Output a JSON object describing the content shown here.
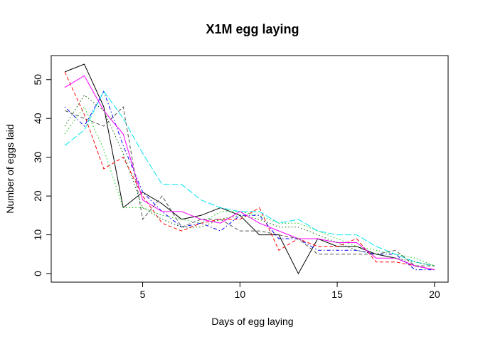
{
  "chart_data": {
    "type": "line",
    "title": "X1M egg laying",
    "xlabel": "Days of egg laying",
    "ylabel": "Number of eggs laid",
    "xlim": [
      0.3,
      20.7
    ],
    "ylim": [
      -2.2,
      56.2
    ],
    "xticks": [
      5,
      10,
      15,
      20
    ],
    "yticks": [
      0,
      10,
      20,
      30,
      40,
      50
    ],
    "grid": false,
    "legend": "none",
    "x": [
      1,
      2,
      3,
      4,
      5,
      6,
      7,
      8,
      9,
      10,
      11,
      12,
      13,
      14,
      15,
      16,
      17,
      18,
      19,
      20
    ],
    "series": [
      {
        "color": "#000000",
        "dash": "solid",
        "values": [
          52,
          54,
          43,
          17,
          21,
          18,
          14,
          15,
          17,
          15,
          10,
          10,
          0,
          9,
          7,
          7,
          5,
          4,
          2,
          1
        ]
      },
      {
        "color": "#ff0000",
        "dash": "dashed",
        "values": [
          52,
          41,
          27,
          30,
          20,
          13,
          11,
          13,
          14,
          14,
          17,
          6,
          9,
          7,
          7,
          9,
          3,
          3,
          2,
          1
        ]
      },
      {
        "color": "#00cd00",
        "dash": "dotted",
        "values": [
          36,
          43,
          32,
          17,
          17,
          15,
          14,
          13,
          16,
          16,
          15,
          13,
          13,
          11,
          9,
          7,
          6,
          5,
          4,
          2
        ]
      },
      {
        "color": "#0000ff",
        "dash": "dotdash",
        "values": [
          43,
          38,
          47,
          33,
          21,
          16,
          12,
          13,
          11,
          15,
          15,
          9,
          9,
          6,
          6,
          6,
          5,
          5,
          1,
          1
        ]
      },
      {
        "color": "#00e5ee",
        "dash": "longdash",
        "values": [
          33,
          37,
          47,
          40,
          31,
          23,
          23,
          19,
          17,
          16,
          16,
          13,
          14,
          11,
          10,
          10,
          7,
          5,
          3,
          2
        ]
      },
      {
        "color": "#ff00ff",
        "dash": "solid",
        "values": [
          48,
          51,
          42,
          36,
          19,
          16,
          16,
          14,
          13,
          16,
          13,
          11,
          9,
          9,
          8,
          8,
          4,
          4,
          2,
          1
        ]
      },
      {
        "color": "#555555",
        "dash": "dashed",
        "values": [
          42,
          40,
          38,
          43,
          14,
          20,
          12,
          14,
          14,
          11,
          11,
          10,
          9,
          5,
          5,
          5,
          5,
          6,
          2,
          2
        ]
      },
      {
        "color": "#006400",
        "dash": "dotted",
        "values": [
          38,
          46,
          42,
          31,
          17,
          14,
          12,
          12,
          14,
          15,
          14,
          12,
          12,
          10,
          8,
          6,
          5,
          4,
          3,
          2
        ]
      }
    ]
  }
}
